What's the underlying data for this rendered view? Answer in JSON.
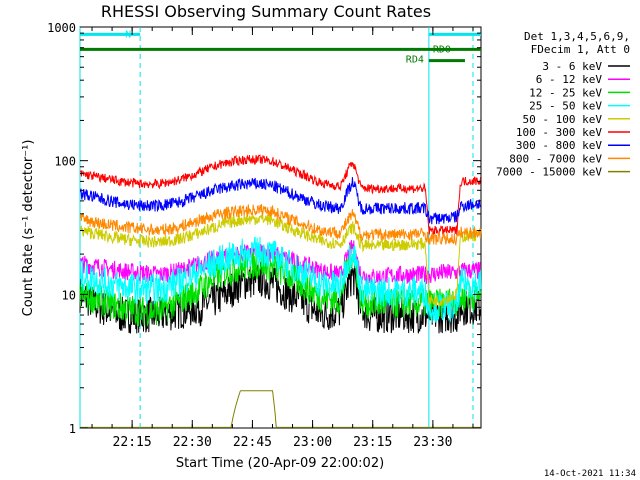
{
  "chart_data": {
    "type": "line",
    "title": "RHESSI Observing Summary Count Rates",
    "xlabel": "Start Time (20-Apr-09 22:00:02)",
    "ylabel": "Count Rate (s⁻¹ detector⁻¹)",
    "yscale": "log",
    "ylim": [
      1,
      1000
    ],
    "xlim_minutes_after_start": [
      0,
      100
    ],
    "x_tick_labels": [
      "22:15",
      "22:30",
      "22:45",
      "23:00",
      "23:15",
      "23:30"
    ],
    "y_tick_labels": [
      "1",
      "10",
      "100",
      "1000"
    ],
    "header_text": [
      "Det 1,3,4,5,6,9,",
      "FDecim 1, Att 0"
    ],
    "timestamp": "14-Oct-2021 11:34",
    "flags": [
      {
        "label": "N",
        "color": "#00e5ee",
        "x_start": 0,
        "x_end": 15,
        "y": 880,
        "segments": [
          [
            0,
            15
          ],
          [
            87,
            100
          ]
        ]
      },
      {
        "label": "RD0",
        "color": "#007a00",
        "x_start": 0,
        "x_end": 100,
        "y": 680
      },
      {
        "label": "RD4",
        "color": "#007a00",
        "x_start": 87,
        "x_end": 96,
        "y": 560
      }
    ],
    "vertical_markers": [
      {
        "x": 0,
        "style": "solid",
        "color": "#00e5ee"
      },
      {
        "x": 15,
        "style": "dashed",
        "color": "#00e5ee"
      },
      {
        "x": 87,
        "style": "solid",
        "color": "#00e5ee"
      },
      {
        "x": 98,
        "style": "dashed",
        "color": "#00e5ee"
      }
    ],
    "x": [
      0,
      5,
      10,
      15,
      20,
      25,
      30,
      35,
      40,
      42,
      45,
      48,
      50,
      55,
      60,
      65,
      68,
      70,
      72,
      75,
      80,
      86,
      87,
      90,
      94,
      95,
      100
    ],
    "series": [
      {
        "name": "3 - 6 keV",
        "color": "#000000",
        "noise": 0.06,
        "values": [
          10,
          8,
          7,
          7,
          7,
          7.5,
          8,
          9.5,
          12,
          12.5,
          13,
          12,
          11,
          9,
          7,
          7.5,
          14,
          8,
          7,
          7,
          7,
          7,
          7,
          7,
          7,
          8,
          8
        ]
      },
      {
        "name": "6 - 12 keV",
        "color": "#ff00ff",
        "noise": 0.03,
        "values": [
          17,
          16,
          15,
          14.5,
          14,
          15,
          17,
          19,
          20,
          20.5,
          21,
          20.5,
          19,
          17,
          15,
          14,
          23,
          14,
          13.5,
          13.5,
          14,
          14,
          14,
          14.5,
          14.5,
          15,
          15
        ]
      },
      {
        "name": "12 - 25 keV",
        "color": "#00e000",
        "noise": 0.05,
        "values": [
          10,
          9,
          8,
          7.5,
          7.5,
          9,
          11,
          14,
          16,
          16.5,
          17,
          16,
          15,
          12,
          9.5,
          9,
          21,
          9,
          8.5,
          8.5,
          8.5,
          8.5,
          8.5,
          8.5,
          9,
          9.5,
          10
        ]
      },
      {
        "name": "25 - 50 keV",
        "color": "#00ffff",
        "noise": 0.05,
        "values": [
          14,
          12.5,
          11.5,
          11,
          11,
          12.5,
          15,
          18,
          20,
          20.5,
          21,
          20,
          18,
          15,
          12,
          11.5,
          22,
          11,
          10.5,
          10.5,
          10.5,
          10.5,
          8,
          8,
          8,
          12,
          12
        ]
      },
      {
        "name": "50 - 100 keV",
        "color": "#cccc00",
        "noise": 0.02,
        "values": [
          30,
          28,
          26,
          25,
          24.5,
          26,
          29,
          33,
          36,
          36.5,
          37,
          36,
          33,
          29,
          25,
          24,
          32,
          23.5,
          23,
          23,
          23.5,
          24,
          9,
          9,
          10,
          27,
          28
        ]
      },
      {
        "name": "100 - 300 keV",
        "color": "#ff0000",
        "noise": 0.015,
        "values": [
          80,
          75,
          70,
          67,
          67,
          72,
          82,
          94,
          101,
          102,
          102,
          99,
          93,
          80,
          68,
          64,
          98,
          63,
          62,
          62,
          62,
          62,
          30,
          30,
          30,
          70,
          71
        ]
      },
      {
        "name": "300 - 800 keV",
        "color": "#0000ff",
        "noise": 0.02,
        "values": [
          57,
          52,
          48,
          46,
          46,
          49,
          55,
          62,
          66,
          67,
          67,
          65,
          61,
          53,
          46,
          44,
          70,
          44,
          44,
          44,
          44,
          44,
          37,
          37,
          38,
          46,
          48
        ]
      },
      {
        "name": "800 - 7000 keV",
        "color": "#ff8800",
        "noise": 0.02,
        "values": [
          37,
          34,
          32,
          31,
          30,
          32,
          36,
          40,
          42,
          42.5,
          43,
          42,
          39,
          34,
          30,
          29,
          40,
          28,
          28,
          28,
          28,
          28.5,
          26,
          26,
          26,
          29,
          29
        ]
      },
      {
        "name": "7000 - 15000 keV",
        "color": "#808000",
        "noise": 0,
        "values": [
          0,
          0,
          0,
          0,
          0,
          0,
          0,
          0,
          1.9,
          1.9,
          1.9,
          1.9,
          0,
          0,
          0,
          0,
          0,
          0,
          0,
          0,
          0,
          0,
          0,
          0,
          0,
          0,
          0
        ]
      }
    ]
  }
}
